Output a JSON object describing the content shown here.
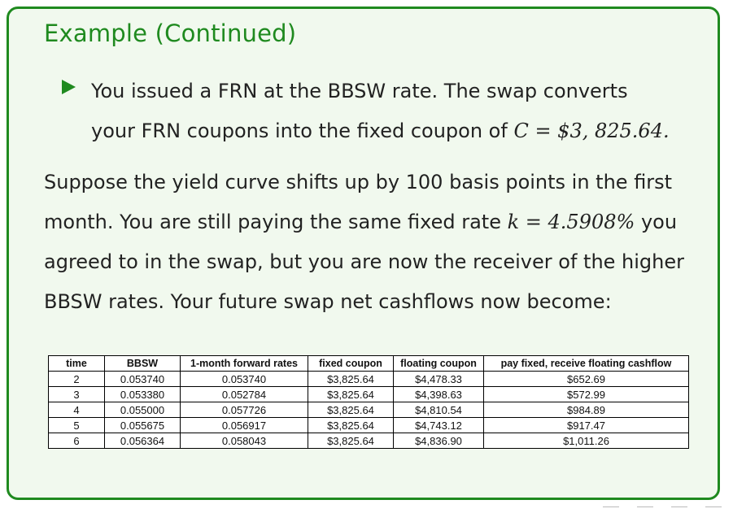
{
  "slide": {
    "title": "Example (Continued)",
    "bullet": {
      "line1": "You issued a FRN at the BBSW rate. The swap converts",
      "line2_pre": "your FRN coupons into the fixed coupon of ",
      "line2_math": "C = $3, 825.64."
    },
    "paragraph": {
      "part1": "Suppose the yield curve shifts up by 100 basis points in the first month. You are still paying the same fixed rate ",
      "math": "k = 4.5908%",
      "part2": " you agreed to in the swap, but you are now the receiver of the higher BBSW rates. Your future swap net cashflows now become:"
    }
  },
  "table": {
    "headers": [
      "time",
      "BBSW",
      "1-month forward rates",
      "fixed coupon",
      "floating coupon",
      "pay fixed, receive floating cashflow"
    ],
    "rows": [
      [
        "2",
        "0.053740",
        "0.053740",
        "$3,825.64",
        "$4,478.33",
        "$652.69"
      ],
      [
        "3",
        "0.053380",
        "0.052784",
        "$3,825.64",
        "$4,398.63",
        "$572.99"
      ],
      [
        "4",
        "0.055000",
        "0.057726",
        "$3,825.64",
        "$4,810.54",
        "$984.89"
      ],
      [
        "5",
        "0.055675",
        "0.056917",
        "$3,825.64",
        "$4,743.12",
        "$917.47"
      ],
      [
        "6",
        "0.056364",
        "0.058043",
        "$3,825.64",
        "$4,836.90",
        "$1,011.26"
      ]
    ]
  },
  "colors": {
    "accent": "#1f8a1f",
    "block_background": "#f1f9ee",
    "text": "#222222"
  }
}
